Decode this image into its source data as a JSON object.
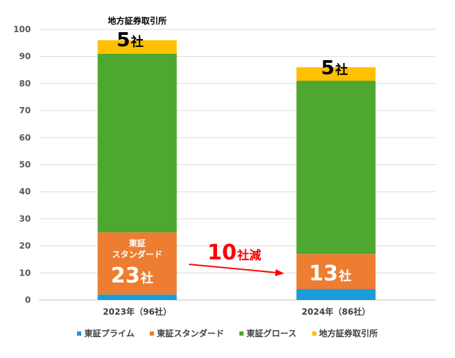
{
  "chart_data": {
    "type": "bar",
    "stacked": true,
    "categories": [
      "2023年（96社）",
      "2024年（86社）"
    ],
    "ylim": [
      0,
      100
    ],
    "yticks": [
      0,
      10,
      20,
      30,
      40,
      50,
      60,
      70,
      80,
      90,
      100
    ],
    "grid": true,
    "legend_position": "bottom",
    "series": [
      {
        "name": "東証プライム",
        "color": "#1a9bd7",
        "values": [
          2,
          4
        ]
      },
      {
        "name": "東証スタンダード",
        "color": "#ed7d31",
        "values": [
          23,
          13
        ]
      },
      {
        "name": "東証グロース",
        "color": "#4ea72e",
        "values": [
          66,
          64
        ]
      },
      {
        "name": "地方証券取引所",
        "color": "#ffc000",
        "values": [
          5,
          5
        ]
      }
    ],
    "annotations": {
      "label_2023_regional_title": "地方証券取引所",
      "label_2023_regional_count": "5",
      "label_2024_regional_count": "5",
      "label_2023_standard_title_1": "東証",
      "label_2023_standard_title_2": "スタンダード",
      "label_2023_standard_count": "23",
      "label_2024_standard_count": "13",
      "count_unit": "社",
      "decrease_number": "10",
      "decrease_unit": "社減",
      "arrow_color": "#ff0000"
    }
  }
}
